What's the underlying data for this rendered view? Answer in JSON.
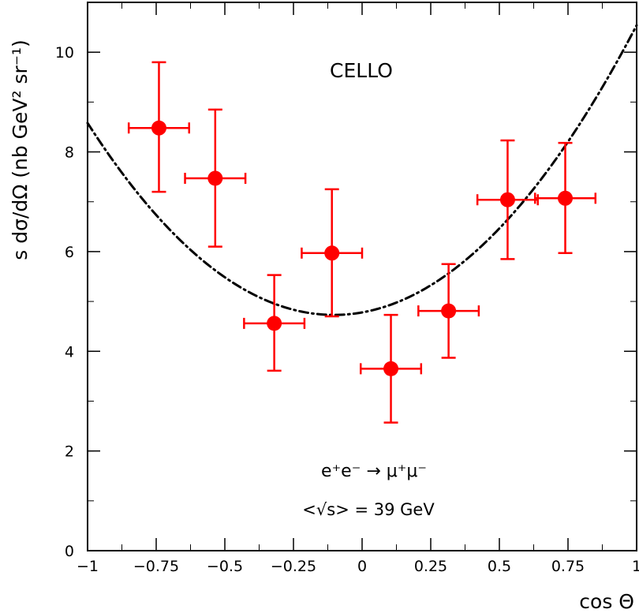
{
  "chart_data": {
    "type": "scatter",
    "xlabel": "cos Θ",
    "ylabel": "s dσ/dΩ (nb GeV² sr⁻¹)",
    "xlim": [
      -1,
      1
    ],
    "ylim": [
      0,
      11
    ],
    "x_ticks": [
      -1,
      -0.75,
      -0.5,
      -0.25,
      0,
      0.25,
      0.5,
      0.75,
      1
    ],
    "x_tick_labels": [
      "−1",
      "−0.75",
      "−0.5",
      "−0.25",
      "0",
      "0.25",
      "0.5",
      "0.75",
      "1"
    ],
    "y_ticks": [
      0,
      2,
      4,
      6,
      8,
      10
    ],
    "y_tick_labels": [
      "0",
      "2",
      "4",
      "6",
      "8",
      "10"
    ],
    "grid": false,
    "annotations": {
      "experiment": "CELLO",
      "process": "e⁺e⁻ → μ⁺μ⁻",
      "energy": "<√s> = 39 GeV"
    },
    "series": [
      {
        "type": "errorbar",
        "color": "#ff0000",
        "points": [
          {
            "x": -0.74,
            "y": 8.48,
            "xerr": 0.11,
            "yerr_low": 1.28,
            "yerr_high": 1.32
          },
          {
            "x": -0.535,
            "y": 7.47,
            "xerr": 0.11,
            "yerr_low": 1.37,
            "yerr_high": 1.38
          },
          {
            "x": -0.32,
            "y": 4.56,
            "xerr": 0.11,
            "yerr_low": 0.95,
            "yerr_high": 0.97
          },
          {
            "x": -0.11,
            "y": 5.97,
            "xerr": 0.11,
            "yerr_low": 1.27,
            "yerr_high": 1.28
          },
          {
            "x": 0.105,
            "y": 3.65,
            "xerr": 0.11,
            "yerr_low": 1.08,
            "yerr_high": 1.08
          },
          {
            "x": 0.315,
            "y": 4.81,
            "xerr": 0.11,
            "yerr_low": 0.94,
            "yerr_high": 0.94
          },
          {
            "x": 0.53,
            "y": 7.04,
            "xerr": 0.11,
            "yerr_low": 1.19,
            "yerr_high": 1.19
          },
          {
            "x": 0.74,
            "y": 7.07,
            "xerr": 0.11,
            "yerr_low": 1.1,
            "yerr_high": 1.11
          }
        ]
      },
      {
        "type": "line",
        "style": "dash-dot",
        "color": "#000000",
        "formula": "4.78*(1+x^2) + 0.98*x"
      }
    ]
  }
}
